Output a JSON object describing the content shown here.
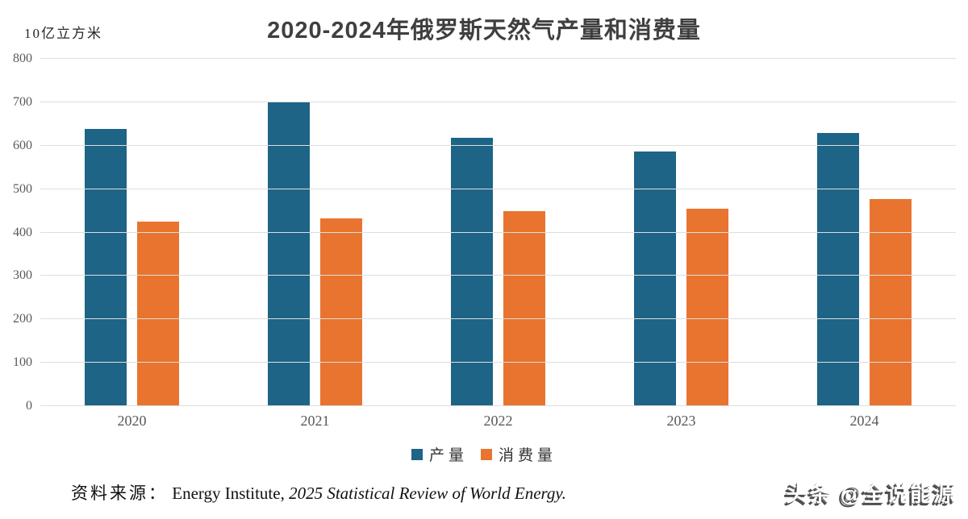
{
  "chart_data": {
    "type": "bar",
    "title": "2020-2024年俄罗斯天然气产量和消费量",
    "unit_label": "10亿立方米",
    "categories": [
      "2020",
      "2021",
      "2022",
      "2023",
      "2024"
    ],
    "series": [
      {
        "name": "产量",
        "color": "#1d6486",
        "values": [
          638,
          702,
          618,
          586,
          630
        ]
      },
      {
        "name": "消费量",
        "color": "#e8742f",
        "values": [
          425,
          432,
          449,
          454,
          477
        ]
      }
    ],
    "ylim": [
      0,
      800
    ],
    "yticks": [
      0,
      100,
      200,
      300,
      400,
      500,
      600,
      700,
      800
    ],
    "xlabel": "",
    "ylabel": "10亿立方米",
    "grid": "horizontal",
    "legend_position": "bottom",
    "gridline_color": "#dedede",
    "axis_text_color": "#595959",
    "title_color": "#3f3f3f"
  },
  "source": {
    "prefix": "资料来源：",
    "normal": "Energy Institute, ",
    "italic": "2025 Statistical Review of World Energy."
  },
  "watermark": {
    "text": "头条 @全说能源"
  }
}
